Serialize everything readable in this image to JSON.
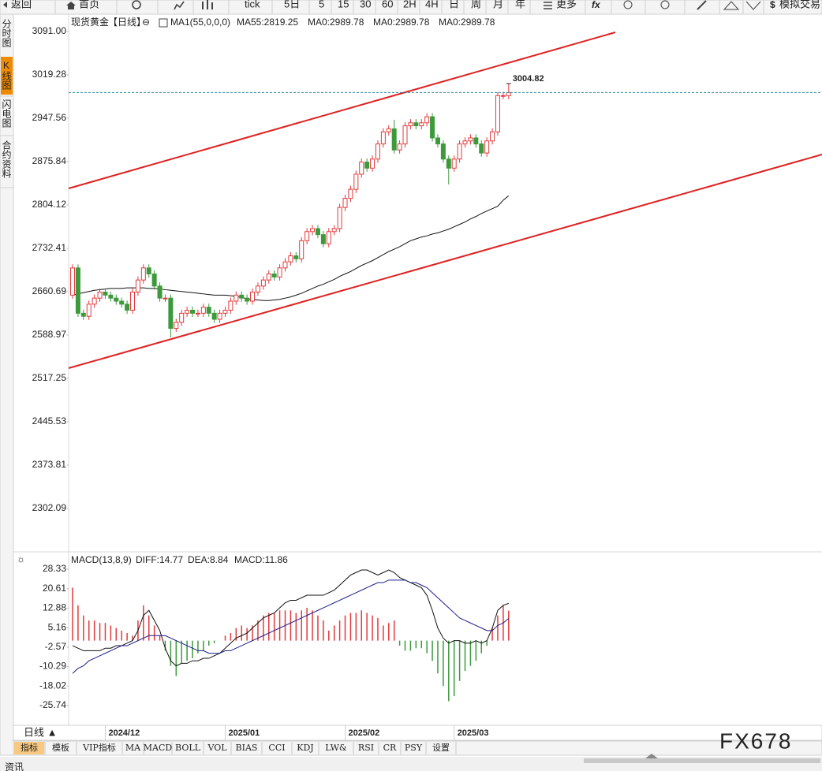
{
  "toolbar": [
    "返回",
    "首页",
    "tick",
    "5日",
    "5",
    "15",
    "30",
    "60",
    "2H",
    "4H",
    "日",
    "周",
    "月",
    "年",
    "更多",
    "模拟交易"
  ],
  "sidebar": [
    {
      "label": "分时图",
      "active": false
    },
    {
      "label": "K线图",
      "active": true
    },
    {
      "label": "闪电图",
      "active": false
    },
    {
      "label": "合约资料",
      "active": false
    }
  ],
  "period_button": "日线 ▲",
  "indicator_tabs": [
    "指标",
    "模板",
    "VIP指标",
    "MA",
    "MACD",
    "BOLL",
    "VOL",
    "BIAS",
    "CCI",
    "KDJ",
    "LW&",
    "RSI",
    "CR",
    "PSY",
    "设置"
  ],
  "bottom_tab": "资讯",
  "watermark": "FX678",
  "chart_data": [
    {
      "type": "candlestick",
      "title": "现货黄金",
      "period": "【日线】",
      "legend": [
        {
          "text": "MA1(55,0,0,0)",
          "color": "#222222"
        },
        {
          "text": "MA55:2819.25",
          "color": "#222222"
        },
        {
          "text": "MA0:2989.78",
          "color": "#1a2ba0"
        },
        {
          "text": "MA0:2989.78",
          "color": "#e020d0"
        },
        {
          "text": "MA0:2989.78",
          "color": "#f0a020"
        }
      ],
      "categories": [
        null,
        null,
        null,
        null,
        null,
        null,
        "2024/12",
        null,
        null,
        null,
        null,
        null,
        null,
        null,
        null,
        null,
        null,
        null,
        null,
        null,
        null,
        null,
        null,
        null,
        null,
        null,
        null,
        null,
        "2025/01",
        null,
        null,
        null,
        null,
        null,
        null,
        null,
        null,
        null,
        null,
        null,
        null,
        null,
        null,
        null,
        null,
        null,
        null,
        null,
        null,
        null,
        "2025/02",
        null,
        null,
        null,
        null,
        null,
        null,
        null,
        null,
        null,
        null,
        null,
        null,
        null,
        null,
        null,
        null,
        null,
        null,
        null,
        "2025/03",
        null,
        null,
        null,
        null,
        null,
        null,
        null,
        null,
        null,
        null
      ],
      "open": [
        2655,
        2700,
        2625,
        2620,
        2640,
        2650,
        2660,
        2655,
        2650,
        2645,
        2640,
        2630,
        2660,
        2680,
        2700,
        2690,
        2670,
        2650,
        2650,
        2600,
        2610,
        2625,
        2630,
        2625,
        2625,
        2635,
        2625,
        2615,
        2625,
        2630,
        2645,
        2655,
        2650,
        2645,
        2660,
        2670,
        2680,
        2690,
        2685,
        2700,
        2710,
        2720,
        2715,
        2745,
        2760,
        2765,
        2755,
        2740,
        2760,
        2765,
        2800,
        2815,
        2830,
        2855,
        2875,
        2865,
        2880,
        2905,
        2925,
        2930,
        2895,
        2905,
        2935,
        2940,
        2935,
        2940,
        2950,
        2915,
        2905,
        2880,
        2865,
        2880,
        2905,
        2910,
        2915,
        2905,
        2890,
        2910,
        2925,
        2985,
        2985
      ],
      "high": [
        2706,
        2706,
        2631,
        2646,
        2656,
        2666,
        2666,
        2661,
        2656,
        2651,
        2646,
        2666,
        2686,
        2706,
        2706,
        2696,
        2676,
        2656,
        2656,
        2616,
        2631,
        2636,
        2636,
        2631,
        2641,
        2641,
        2631,
        2631,
        2636,
        2651,
        2661,
        2661,
        2656,
        2666,
        2676,
        2686,
        2696,
        2696,
        2706,
        2716,
        2726,
        2726,
        2751,
        2766,
        2771,
        2771,
        2761,
        2766,
        2771,
        2806,
        2821,
        2836,
        2861,
        2881,
        2881,
        2886,
        2911,
        2931,
        2936,
        2945,
        2911,
        2941,
        2946,
        2946,
        2946,
        2956,
        2956,
        2921,
        2911,
        2886,
        2886,
        2911,
        2916,
        2921,
        2921,
        2911,
        2916,
        2931,
        2991,
        2991,
        3004.82
      ],
      "low": [
        2649,
        2619,
        2614,
        2614,
        2634,
        2644,
        2649,
        2644,
        2639,
        2634,
        2624,
        2624,
        2654,
        2674,
        2684,
        2664,
        2644,
        2644,
        2585,
        2594,
        2604,
        2619,
        2619,
        2619,
        2619,
        2619,
        2609,
        2609,
        2619,
        2624,
        2639,
        2644,
        2639,
        2639,
        2654,
        2664,
        2674,
        2679,
        2679,
        2694,
        2704,
        2709,
        2709,
        2739,
        2754,
        2749,
        2734,
        2734,
        2754,
        2759,
        2794,
        2809,
        2824,
        2849,
        2859,
        2859,
        2874,
        2899,
        2919,
        2889,
        2889,
        2899,
        2929,
        2929,
        2929,
        2934,
        2909,
        2899,
        2874,
        2838,
        2859,
        2874,
        2899,
        2904,
        2899,
        2884,
        2884,
        2904,
        2919,
        2979,
        2979
      ],
      "close": [
        2700,
        2625,
        2620,
        2640,
        2650,
        2660,
        2655,
        2650,
        2645,
        2640,
        2630,
        2660,
        2680,
        2700,
        2690,
        2670,
        2650,
        2650,
        2600,
        2610,
        2625,
        2630,
        2625,
        2625,
        2635,
        2625,
        2615,
        2625,
        2630,
        2645,
        2655,
        2650,
        2645,
        2660,
        2670,
        2680,
        2690,
        2685,
        2700,
        2710,
        2720,
        2715,
        2745,
        2760,
        2765,
        2755,
        2740,
        2760,
        2765,
        2800,
        2815,
        2830,
        2855,
        2875,
        2865,
        2880,
        2905,
        2925,
        2930,
        2895,
        2905,
        2935,
        2940,
        2935,
        2940,
        2950,
        2915,
        2905,
        2880,
        2865,
        2880,
        2905,
        2910,
        2915,
        2905,
        2890,
        2910,
        2925,
        2985,
        2985,
        2990
      ],
      "high_label": "3004.82",
      "up_color": "#e4393c",
      "down_color": "#3c9a3c",
      "ma": {
        "color": "#111111",
        "values": [
          2655,
          2657,
          2659,
          2661,
          2663,
          2664,
          2665,
          2666,
          2666,
          2666,
          2667,
          2667,
          2667,
          2667,
          2666,
          2666,
          2665,
          2664,
          2663,
          2662,
          2661,
          2660,
          2659,
          2658,
          2657,
          2656,
          2655,
          2655,
          2655,
          2654,
          2653,
          2651,
          2649,
          2648,
          2647,
          2646,
          2646,
          2647,
          2648,
          2650,
          2652,
          2655,
          2658,
          2662,
          2666,
          2670,
          2673,
          2677,
          2681,
          2686,
          2690,
          2694,
          2699,
          2704,
          2708,
          2712,
          2717,
          2722,
          2727,
          2731,
          2735,
          2740,
          2745,
          2748,
          2751,
          2753,
          2756,
          2758,
          2761,
          2764,
          2768,
          2772,
          2776,
          2781,
          2785,
          2790,
          2794,
          2798,
          2802,
          2812,
          2819.25
        ]
      },
      "last_price_color": "#2a8a9a",
      "ylim": [
        2230.4,
        3117
      ],
      "yticks": [
        {
          "value": 3091,
          "label": "3091.00"
        },
        3019.28,
        2947.56,
        2875.84,
        2804.12,
        2732.41,
        2660.69,
        2588.97,
        2517.25,
        2445.53,
        2373.81,
        2302.09
      ]
    },
    {
      "type": "macd",
      "legend": [
        {
          "text": "MACD(13,8,9)",
          "color": "#222222"
        },
        {
          "text": "DIFF:14.77",
          "color": "#222222"
        },
        {
          "text": "DEA:8.84",
          "color": "#1a2ba0"
        },
        {
          "text": "MACD:11.86",
          "color": "#e020d0"
        }
      ],
      "histogram": {
        "up_color": "#e4393c",
        "down_color": "#3c9a3c",
        "values": [
          21,
          14,
          10,
          8,
          8,
          7,
          7,
          6,
          5,
          4,
          3,
          2,
          8,
          14,
          10,
          6,
          2,
          -4,
          -10,
          -14,
          -9,
          -8,
          -7,
          -5,
          -4,
          -2,
          -1,
          0,
          2,
          3,
          5,
          6,
          5,
          6,
          8,
          10,
          11,
          11,
          12,
          12,
          12,
          11,
          12,
          13,
          12,
          10,
          8,
          4,
          6,
          8,
          10,
          11,
          11,
          12,
          11,
          10,
          9,
          6,
          7,
          8,
          -2,
          -4,
          -4,
          -3,
          -3,
          -5,
          -8,
          -13,
          -18,
          -24,
          -22,
          -16,
          -12,
          -10,
          -8,
          -5,
          -2,
          5,
          10,
          14,
          11.86
        ]
      },
      "lines": [
        {
          "color": "#111111",
          "values": [
            -2,
            -3,
            -4,
            -4,
            -4,
            -4,
            -3,
            -3,
            -2,
            -2,
            -1,
            0,
            4,
            10,
            12,
            8,
            4,
            -3,
            -8,
            -10,
            -9,
            -9,
            -8,
            -8,
            -7,
            -7,
            -6,
            -5,
            -3,
            -1,
            1,
            2,
            3,
            5,
            7,
            9,
            10,
            11,
            13,
            15,
            16,
            16,
            17,
            18,
            18,
            18,
            18,
            19,
            20,
            22,
            24,
            26,
            27,
            28,
            28,
            27,
            26,
            27,
            28,
            27,
            25,
            24,
            23,
            22,
            21,
            18,
            12,
            5,
            1,
            -1,
            0,
            0,
            -1,
            -1,
            0,
            -1,
            0,
            5,
            12,
            14,
            14.77
          ]
        },
        {
          "color": "#1c1c8c",
          "values": [
            -13,
            -11,
            -10,
            -8,
            -7,
            -6,
            -5,
            -4,
            -3,
            -2,
            -2,
            -1,
            0,
            1,
            2,
            2,
            2,
            2,
            1,
            0,
            -1,
            -2,
            -3,
            -4,
            -4,
            -5,
            -5,
            -5,
            -4,
            -4,
            -3,
            -2,
            -1,
            0,
            1,
            2,
            3,
            4,
            5,
            6,
            7,
            8,
            9,
            10,
            11,
            12,
            13,
            14,
            15,
            16,
            17,
            18,
            19,
            20,
            21,
            22,
            23,
            23,
            24,
            24,
            24,
            24,
            23,
            23,
            22,
            21,
            19,
            17,
            15,
            13,
            11,
            9,
            8,
            7,
            6,
            5,
            4,
            4,
            6,
            7,
            8.84
          ]
        }
      ],
      "ylim": [
        -32.93,
        33.64
      ],
      "yticks": [
        28.33,
        20.61,
        12.88,
        5.16,
        -2.57,
        -10.29,
        -18.02,
        -25.74
      ]
    }
  ]
}
